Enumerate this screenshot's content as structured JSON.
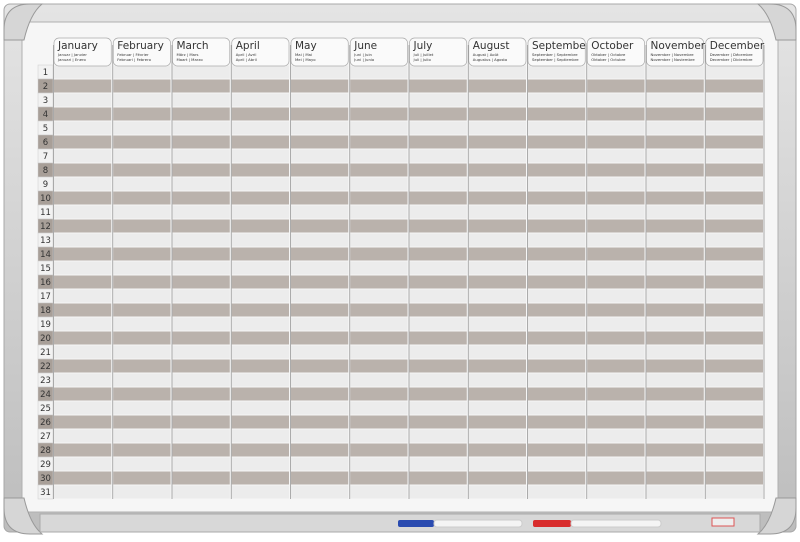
{
  "months": [
    {
      "name": "January",
      "sub1": "Januar | Janvier",
      "sub2": "Januari | Enero"
    },
    {
      "name": "February",
      "sub1": "Februar | Février",
      "sub2": "Februari | Febrero"
    },
    {
      "name": "March",
      "sub1": "März | Mars",
      "sub2": "Maart | Marzo"
    },
    {
      "name": "April",
      "sub1": "April | Avril",
      "sub2": "April | Abril"
    },
    {
      "name": "May",
      "sub1": "Mai | Mai",
      "sub2": "Mei | Mayo"
    },
    {
      "name": "June",
      "sub1": "Juni | Juin",
      "sub2": "Juni | Junio"
    },
    {
      "name": "July",
      "sub1": "Juli | Juillet",
      "sub2": "Juli | Julio"
    },
    {
      "name": "August",
      "sub1": "August | Août",
      "sub2": "Augustus | Agosto"
    },
    {
      "name": "September",
      "sub1": "September | Septembre",
      "sub2": "September | Septiembre"
    },
    {
      "name": "October",
      "sub1": "Oktober | Octobre",
      "sub2": "Oktober | Octubre"
    },
    {
      "name": "November",
      "sub1": "November | Novembre",
      "sub2": "November | Noviembre"
    },
    {
      "name": "December",
      "sub1": "Dezember | Décembre",
      "sub2": "December | Diciembre"
    }
  ],
  "days": [
    1,
    2,
    3,
    4,
    5,
    6,
    7,
    8,
    9,
    10,
    11,
    12,
    13,
    14,
    15,
    16,
    17,
    18,
    19,
    20,
    21,
    22,
    23,
    24,
    25,
    26,
    27,
    28,
    29,
    30,
    31
  ]
}
